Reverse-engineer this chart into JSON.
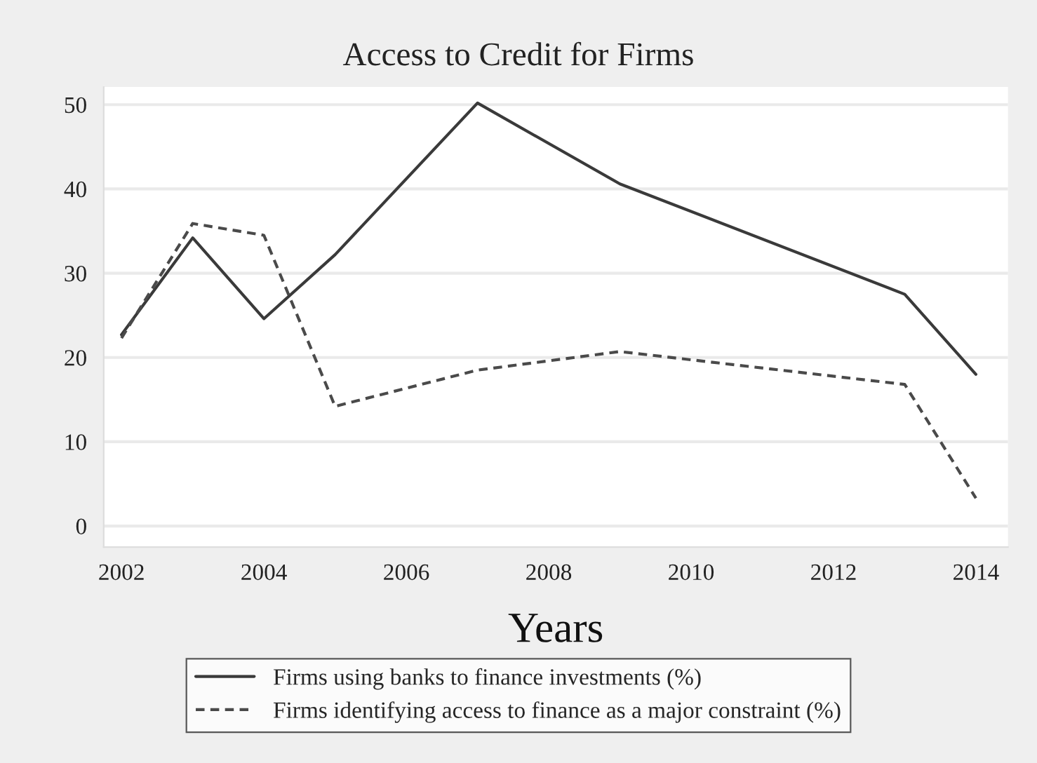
{
  "chart_data": {
    "type": "line",
    "title": "Access to Credit for Firms",
    "xlabel": "Years",
    "x": [
      2002,
      2003,
      2004,
      2005,
      2007,
      2009,
      2013,
      2014
    ],
    "series": [
      {
        "name": "Firms using banks to finance investments (%)",
        "color": "#3a3a3a",
        "line_style": "solid",
        "values": [
          22.7,
          34.2,
          24.6,
          32.2,
          50.2,
          40.6,
          27.5,
          18.0
        ]
      },
      {
        "name": "Firms identifying access to finance as a major constraint (%)",
        "color": "#4a4a4a",
        "line_style": "dashed",
        "values": [
          22.3,
          35.9,
          34.5,
          14.2,
          18.5,
          20.7,
          16.8,
          3.3
        ]
      }
    ],
    "xlim": [
      2001.75,
      2014.45
    ],
    "xticks": [
      2002,
      2004,
      2006,
      2008,
      2010,
      2012,
      2014
    ],
    "ylim": [
      -2.5,
      52.1
    ],
    "yticks": [
      0,
      10,
      20,
      30,
      40,
      50
    ],
    "grid": "y",
    "legend": "bottom",
    "marker": "none"
  }
}
